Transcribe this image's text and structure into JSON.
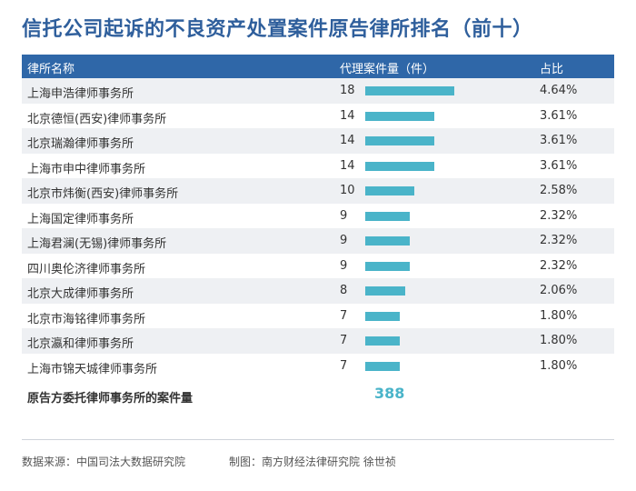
{
  "title": "信托公司起诉的不良资产处置案件原告律所排名（前十）",
  "header": {
    "name": "律所名称",
    "count": "代理案件量（件）",
    "share": "占比"
  },
  "chart_data": {
    "type": "bar",
    "categories": [
      "上海申浩律师事务所",
      "北京德恒(西安)律师事务所",
      "北京瑞瀚律师事务所",
      "上海市申中律师事务所",
      "北京市炜衡(西安)律师事务所",
      "上海国定律师事务所",
      "上海君澜(无锡)律师事务所",
      "四川奥伦济律师事务所",
      "北京大成律师事务所",
      "北京市海铭律师事务所",
      "北京瀛和律师事务所",
      "上海市锦天城律师事务所"
    ],
    "values": [
      18,
      14,
      14,
      14,
      10,
      9,
      9,
      9,
      8,
      7,
      7,
      7
    ],
    "shares": [
      "4.64%",
      "3.61%",
      "3.61%",
      "3.61%",
      "2.58%",
      "2.32%",
      "2.32%",
      "2.32%",
      "2.06%",
      "1.80%",
      "1.80%",
      "1.80%"
    ],
    "bar_color": "#4ab4c9"
  },
  "total": {
    "label": "原告方委托律师事务所的案件量",
    "value": "388"
  },
  "footer": {
    "source": "数据来源：中国司法大数据研究院",
    "credit": "制图：南方财经法律研究院 徐世祯"
  }
}
